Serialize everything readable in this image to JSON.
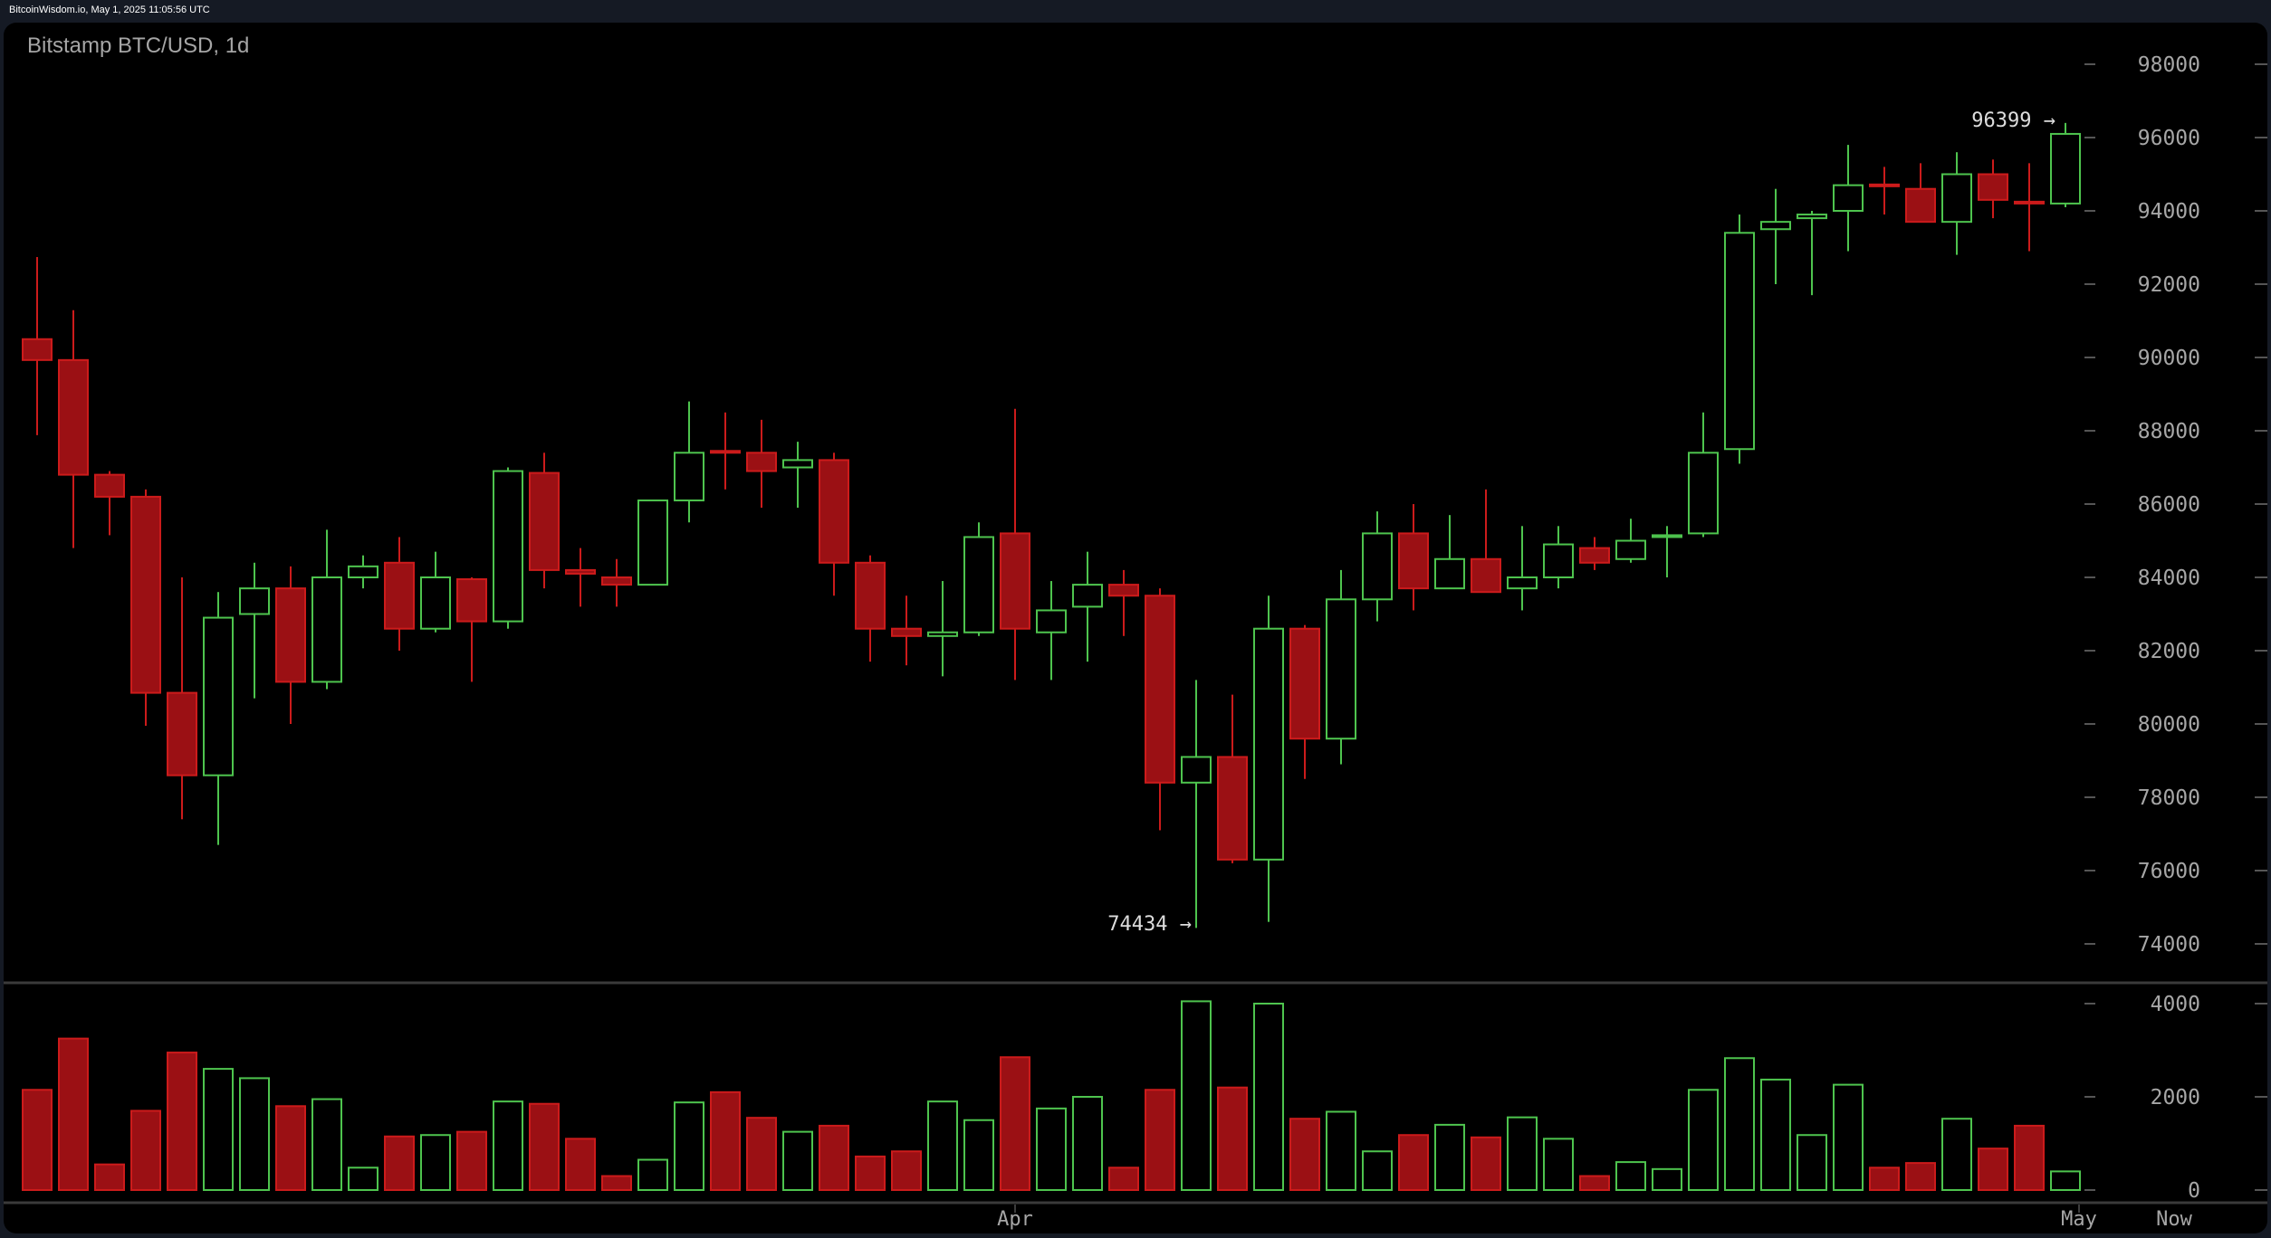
{
  "header": {
    "source_line": "BitcoinWisdom.io, May 1, 2025 11:05:56 UTC"
  },
  "chart": {
    "title": "Bitstamp BTC/USD, 1d",
    "colors": {
      "up": "#4ec44e",
      "down": "#cc1b1b",
      "down_fill": "#9b1014",
      "axis_text": "#a6a6a6",
      "background": "#000000",
      "frame": "#151a24"
    },
    "annotations": {
      "high_label": "96399 →",
      "low_label": "74434 →"
    },
    "x_labels": [
      "Apr",
      "May",
      "Now"
    ]
  },
  "chart_data": [
    {
      "type": "candlestick",
      "title": "Bitstamp BTC/USD, 1d",
      "ylabel": "Price (USD)",
      "ylim": [
        72800,
        99000
      ],
      "yticks": [
        74000,
        76000,
        78000,
        80000,
        82000,
        84000,
        86000,
        88000,
        90000,
        92000,
        94000,
        96000,
        98000
      ],
      "xticks": [
        "Apr",
        "May",
        "Now"
      ],
      "grid": false,
      "annotations": [
        {
          "label": "96399",
          "type": "high"
        },
        {
          "label": "74434",
          "type": "low"
        }
      ],
      "ohlc": [
        [
          90500,
          92740,
          87880,
          89930
        ],
        [
          89930,
          91290,
          84800,
          86800
        ],
        [
          86800,
          86900,
          85150,
          86200
        ],
        [
          86200,
          86400,
          79950,
          80850
        ],
        [
          80850,
          84000,
          77400,
          78600
        ],
        [
          78600,
          83600,
          76700,
          82900
        ],
        [
          83000,
          84400,
          80700,
          83700
        ],
        [
          83700,
          84300,
          80000,
          81150
        ],
        [
          81150,
          85300,
          80950,
          84000
        ],
        [
          84000,
          84600,
          83700,
          84300
        ],
        [
          84400,
          85100,
          82000,
          82600
        ],
        [
          82600,
          84700,
          82500,
          84000
        ],
        [
          83950,
          84000,
          81150,
          82800
        ],
        [
          82800,
          87000,
          82600,
          86900
        ],
        [
          86850,
          87400,
          83700,
          84200
        ],
        [
          84200,
          84800,
          83200,
          84100
        ],
        [
          84000,
          84500,
          83200,
          83800
        ],
        [
          83800,
          86100,
          83800,
          86100
        ],
        [
          86100,
          88800,
          85500,
          87400
        ],
        [
          87450,
          88500,
          86400,
          87400
        ],
        [
          87400,
          88300,
          85900,
          86900
        ],
        [
          87000,
          87700,
          85900,
          87200
        ],
        [
          87200,
          87400,
          83500,
          84400
        ],
        [
          84400,
          84600,
          81700,
          82600
        ],
        [
          82600,
          83500,
          81600,
          82400
        ],
        [
          82400,
          83900,
          81300,
          82500
        ],
        [
          82500,
          85500,
          82400,
          85100
        ],
        [
          85200,
          88600,
          81200,
          82600
        ],
        [
          82500,
          83900,
          81200,
          83100
        ],
        [
          83200,
          84700,
          81700,
          83800
        ],
        [
          83800,
          84200,
          82400,
          83500
        ],
        [
          83500,
          83700,
          77100,
          78400
        ],
        [
          78400,
          81200,
          74434,
          79100
        ],
        [
          79100,
          80800,
          76200,
          76300
        ],
        [
          76300,
          83500,
          74600,
          82600
        ],
        [
          82600,
          82700,
          78500,
          79600
        ],
        [
          79600,
          84200,
          78900,
          83400
        ],
        [
          83400,
          85800,
          82800,
          85200
        ],
        [
          85200,
          86000,
          83100,
          83700
        ],
        [
          83700,
          85700,
          83700,
          84500
        ],
        [
          84500,
          86400,
          83600,
          83600
        ],
        [
          83700,
          85400,
          83100,
          84000
        ],
        [
          84000,
          85400,
          83700,
          84900
        ],
        [
          84800,
          85100,
          84200,
          84400
        ],
        [
          84500,
          85600,
          84400,
          85000
        ],
        [
          85100,
          85400,
          84000,
          85150
        ],
        [
          85200,
          88500,
          85100,
          87400
        ],
        [
          87500,
          93900,
          87100,
          93400
        ],
        [
          93500,
          94600,
          92000,
          93700
        ],
        [
          93800,
          94000,
          91700,
          93900
        ],
        [
          94000,
          95800,
          92900,
          94700
        ],
        [
          94720,
          95200,
          93900,
          94700
        ],
        [
          94600,
          95300,
          93700,
          93700
        ],
        [
          93700,
          95600,
          92800,
          95000
        ],
        [
          95000,
          95400,
          93800,
          94300
        ],
        [
          94250,
          95300,
          92900,
          94200
        ],
        [
          94200,
          96399,
          94100,
          96100
        ]
      ]
    },
    {
      "type": "bar",
      "title": "Volume",
      "ylim": [
        0,
        4300
      ],
      "yticks": [
        0,
        2000,
        4000
      ],
      "values": [
        2150,
        3250,
        550,
        1700,
        2950,
        2600,
        2400,
        1800,
        1950,
        480,
        1150,
        1180,
        1250,
        1900,
        1850,
        1100,
        300,
        650,
        1880,
        2100,
        1550,
        1250,
        1380,
        720,
        830,
        1900,
        1500,
        2850,
        1750,
        2000,
        480,
        2150,
        4050,
        2200,
        4000,
        1530,
        1680,
        830,
        1180,
        1400,
        1130,
        1560,
        1100,
        300,
        600,
        450,
        2150,
        2830,
        2370,
        1180,
        2260,
        480,
        580,
        1530,
        890,
        1380,
        400
      ],
      "colors_from_candles": true
    }
  ]
}
